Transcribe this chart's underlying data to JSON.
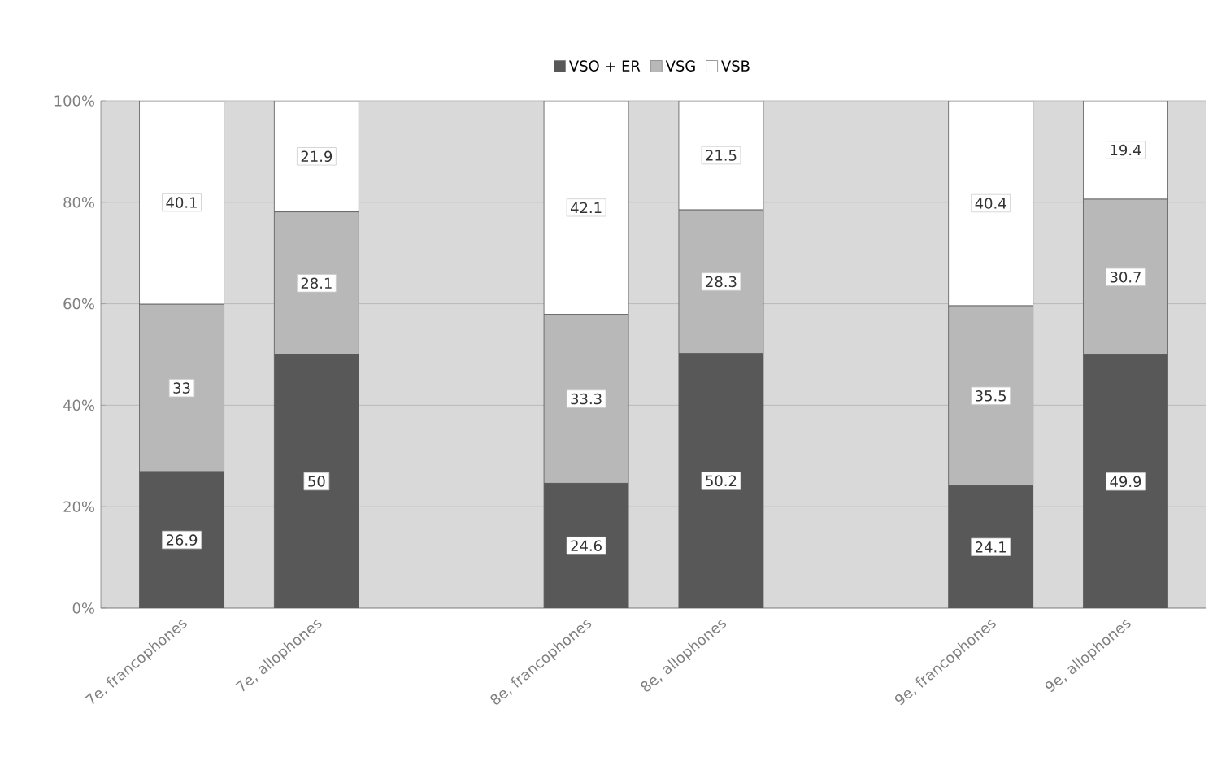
{
  "chart_data": {
    "type": "bar",
    "stacked": true,
    "categories": [
      "7e, francophones",
      "7e, allophones",
      null,
      "8e, francophones",
      "8e, allophones",
      null,
      "9e, francophones",
      "9e, allophones"
    ],
    "series": [
      {
        "name": "VSO + ER",
        "color": "#585858",
        "values": [
          26.9,
          50,
          null,
          24.6,
          50.2,
          null,
          24.1,
          49.9
        ]
      },
      {
        "name": "VSG",
        "color": "#b8b8b8",
        "values": [
          33,
          28.1,
          null,
          33.3,
          28.3,
          null,
          35.5,
          30.7
        ]
      },
      {
        "name": "VSB",
        "color": "#ffffff",
        "values": [
          40.1,
          21.9,
          null,
          42.1,
          21.5,
          null,
          40.4,
          19.4
        ]
      }
    ],
    "ylim": [
      0,
      100
    ],
    "yticks": [
      {
        "value": 0,
        "label": "0%"
      },
      {
        "value": 20,
        "label": "20%"
      },
      {
        "value": 40,
        "label": "40%"
      },
      {
        "value": 60,
        "label": "60%"
      },
      {
        "value": 80,
        "label": "80%"
      },
      {
        "value": 100,
        "label": "100%"
      }
    ],
    "grid": "y",
    "legend": "top",
    "data_labels": true
  }
}
